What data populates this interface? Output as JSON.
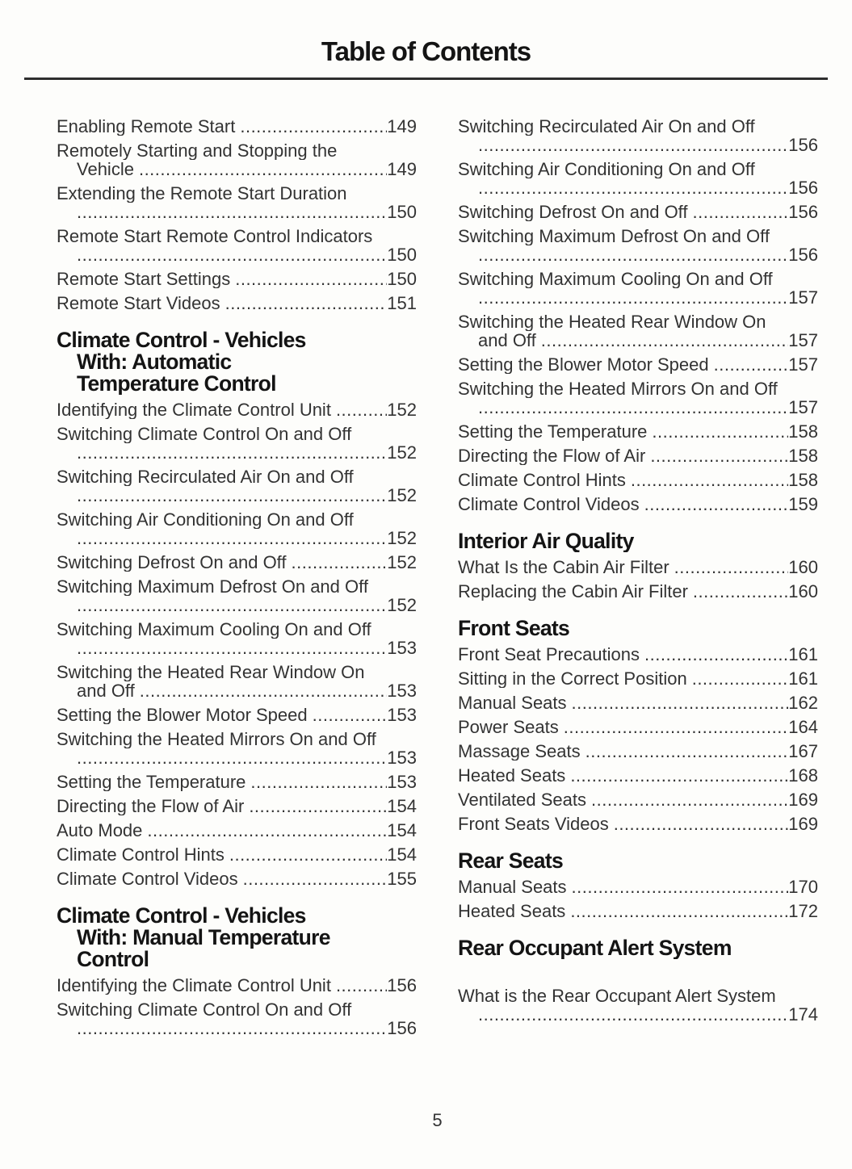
{
  "document": {
    "title": "Table of Contents",
    "page_number": "5"
  },
  "toc": {
    "left": [
      {
        "type": "entry",
        "lines": [
          "Enabling Remote Start"
        ],
        "page": "149"
      },
      {
        "type": "entry",
        "lines": [
          "Remotely Starting and Stopping the",
          "Vehicle"
        ],
        "page": "149"
      },
      {
        "type": "entry",
        "lines": [
          "Extending the Remote Start Duration",
          ""
        ],
        "page": "150"
      },
      {
        "type": "entry",
        "lines": [
          "Remote Start Remote Control Indicators",
          ""
        ],
        "page": "150"
      },
      {
        "type": "entry",
        "lines": [
          "Remote Start Settings"
        ],
        "page": "150"
      },
      {
        "type": "entry",
        "lines": [
          "Remote Start Videos"
        ],
        "page": "151"
      },
      {
        "type": "heading",
        "lines": [
          "Climate Control - Vehicles",
          "With: Automatic",
          "Temperature Control"
        ]
      },
      {
        "type": "entry",
        "lines": [
          "Identifying the Climate Control Unit"
        ],
        "page": "152"
      },
      {
        "type": "entry",
        "lines": [
          "Switching Climate Control On and Off",
          ""
        ],
        "page": "152"
      },
      {
        "type": "entry",
        "lines": [
          "Switching Recirculated Air On and Off",
          ""
        ],
        "page": "152"
      },
      {
        "type": "entry",
        "lines": [
          "Switching Air Conditioning On and Off",
          ""
        ],
        "page": "152"
      },
      {
        "type": "entry",
        "lines": [
          "Switching Defrost On and Off"
        ],
        "page": "152"
      },
      {
        "type": "entry",
        "lines": [
          "Switching Maximum Defrost On and Off",
          ""
        ],
        "page": "152"
      },
      {
        "type": "entry",
        "lines": [
          "Switching Maximum Cooling On and Off",
          ""
        ],
        "page": "153"
      },
      {
        "type": "entry",
        "lines": [
          "Switching the Heated Rear Window On",
          "and Off"
        ],
        "page": "153"
      },
      {
        "type": "entry",
        "lines": [
          "Setting the Blower Motor Speed"
        ],
        "page": "153"
      },
      {
        "type": "entry",
        "lines": [
          "Switching the Heated Mirrors On and Off",
          ""
        ],
        "page": "153"
      },
      {
        "type": "entry",
        "lines": [
          "Setting the Temperature"
        ],
        "page": "153"
      },
      {
        "type": "entry",
        "lines": [
          "Directing the Flow of Air"
        ],
        "page": "154"
      },
      {
        "type": "entry",
        "lines": [
          "Auto Mode"
        ],
        "page": "154"
      },
      {
        "type": "entry",
        "lines": [
          "Climate Control Hints"
        ],
        "page": "154"
      },
      {
        "type": "entry",
        "lines": [
          "Climate Control Videos"
        ],
        "page": "155"
      },
      {
        "type": "heading",
        "lines": [
          "Climate Control - Vehicles",
          "With: Manual Temperature",
          "Control"
        ]
      },
      {
        "type": "entry",
        "lines": [
          "Identifying the Climate Control Unit"
        ],
        "page": "156"
      },
      {
        "type": "entry",
        "lines": [
          "Switching Climate Control On and Off",
          ""
        ],
        "page": "156"
      }
    ],
    "right": [
      {
        "type": "entry",
        "lines": [
          "Switching Recirculated Air On and Off",
          ""
        ],
        "page": "156"
      },
      {
        "type": "entry",
        "lines": [
          "Switching Air Conditioning On and Off",
          ""
        ],
        "page": "156"
      },
      {
        "type": "entry",
        "lines": [
          "Switching Defrost On and Off"
        ],
        "page": "156"
      },
      {
        "type": "entry",
        "lines": [
          "Switching Maximum Defrost On and Off",
          ""
        ],
        "page": "156"
      },
      {
        "type": "entry",
        "lines": [
          "Switching Maximum Cooling On and Off",
          ""
        ],
        "page": "157"
      },
      {
        "type": "entry",
        "lines": [
          "Switching the Heated Rear Window On",
          "and Off"
        ],
        "page": "157"
      },
      {
        "type": "entry",
        "lines": [
          "Setting the Blower Motor Speed"
        ],
        "page": "157"
      },
      {
        "type": "entry",
        "lines": [
          "Switching the Heated Mirrors On and Off",
          ""
        ],
        "page": "157"
      },
      {
        "type": "entry",
        "lines": [
          "Setting the Temperature"
        ],
        "page": "158"
      },
      {
        "type": "entry",
        "lines": [
          "Directing the Flow of Air"
        ],
        "page": "158"
      },
      {
        "type": "entry",
        "lines": [
          "Climate Control Hints"
        ],
        "page": "158"
      },
      {
        "type": "entry",
        "lines": [
          "Climate Control Videos"
        ],
        "page": "159"
      },
      {
        "type": "heading",
        "lines": [
          "Interior Air Quality"
        ]
      },
      {
        "type": "entry",
        "lines": [
          "What Is the Cabin Air Filter"
        ],
        "page": "160"
      },
      {
        "type": "entry",
        "lines": [
          "Replacing the Cabin Air Filter"
        ],
        "page": "160"
      },
      {
        "type": "heading",
        "lines": [
          "Front Seats"
        ]
      },
      {
        "type": "entry",
        "lines": [
          "Front Seat Precautions"
        ],
        "page": "161"
      },
      {
        "type": "entry",
        "lines": [
          "Sitting in the Correct Position"
        ],
        "page": "161"
      },
      {
        "type": "entry",
        "lines": [
          "Manual Seats"
        ],
        "page": "162"
      },
      {
        "type": "entry",
        "lines": [
          "Power Seats"
        ],
        "page": "164"
      },
      {
        "type": "entry",
        "lines": [
          "Massage Seats"
        ],
        "page": "167"
      },
      {
        "type": "entry",
        "lines": [
          "Heated Seats"
        ],
        "page": "168"
      },
      {
        "type": "entry",
        "lines": [
          "Ventilated Seats"
        ],
        "page": "169"
      },
      {
        "type": "entry",
        "lines": [
          "Front Seats Videos"
        ],
        "page": "169"
      },
      {
        "type": "heading",
        "lines": [
          "Rear Seats"
        ]
      },
      {
        "type": "entry",
        "lines": [
          "Manual Seats"
        ],
        "page": "170"
      },
      {
        "type": "entry",
        "lines": [
          "Heated Seats"
        ],
        "page": "172"
      },
      {
        "type": "heading",
        "lines": [
          "Rear Occupant Alert System"
        ]
      },
      {
        "type": "entry",
        "gap_before": true,
        "lines": [
          "What is the Rear Occupant Alert System",
          ""
        ],
        "page": "174"
      }
    ]
  }
}
